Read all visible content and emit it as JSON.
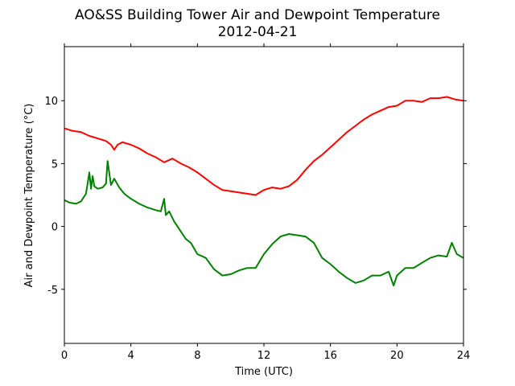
{
  "chart_data": {
    "type": "line",
    "title": "AO&SS Building Tower Air and Dewpoint Temperature",
    "subtitle": "2012-04-21",
    "xlabel": "Time (UTC)",
    "ylabel": "Air and Dewpoint Temperature (°C)",
    "xlim": [
      0,
      24
    ],
    "ylim": [
      -9.3,
      14.3
    ],
    "xticks": [
      0,
      4,
      8,
      12,
      16,
      20,
      24
    ],
    "yticks": [
      -5,
      0,
      5,
      10
    ],
    "grid": false,
    "legend": "none",
    "series": [
      {
        "color": "#ff0000",
        "x": [
          0,
          0.5,
          1,
          1.5,
          2,
          2.5,
          2.8,
          3.0,
          3.2,
          3.5,
          4.0,
          4.5,
          5.0,
          5.5,
          6.0,
          6.5,
          7.0,
          7.5,
          8.0,
          8.5,
          9.0,
          9.5,
          10.0,
          10.5,
          11.0,
          11.5,
          12.0,
          12.5,
          13.0,
          13.5,
          14.0,
          14.5,
          15.0,
          15.5,
          16.0,
          16.5,
          17.0,
          17.5,
          18.0,
          18.5,
          19.0,
          19.5,
          20.0,
          20.5,
          21.0,
          21.5,
          22.0,
          22.5,
          23.0,
          23.5,
          24.0
        ],
        "values": [
          7.8,
          7.6,
          7.5,
          7.2,
          7.0,
          6.8,
          6.5,
          6.1,
          6.5,
          6.7,
          6.5,
          6.2,
          5.8,
          5.5,
          5.1,
          5.4,
          5.0,
          4.7,
          4.3,
          3.8,
          3.3,
          2.9,
          2.8,
          2.7,
          2.6,
          2.5,
          2.9,
          3.1,
          3.0,
          3.2,
          3.7,
          4.5,
          5.2,
          5.7,
          6.3,
          6.9,
          7.5,
          8.0,
          8.5,
          8.9,
          9.2,
          9.5,
          9.6,
          10.0,
          10.0,
          9.9,
          10.2,
          10.2,
          10.3,
          10.1,
          10.0
        ]
      },
      {
        "color": "#008000",
        "x": [
          0,
          0.3,
          0.7,
          1.0,
          1.3,
          1.5,
          1.6,
          1.7,
          1.8,
          2.0,
          2.3,
          2.5,
          2.6,
          2.8,
          3.0,
          3.3,
          3.6,
          4.0,
          4.5,
          5.0,
          5.5,
          5.8,
          6.0,
          6.1,
          6.3,
          6.6,
          7.0,
          7.3,
          7.6,
          8.0,
          8.5,
          9.0,
          9.5,
          10.0,
          10.5,
          11.0,
          11.5,
          12.0,
          12.5,
          13.0,
          13.5,
          14.0,
          14.5,
          15.0,
          15.5,
          16.0,
          16.5,
          17.0,
          17.5,
          18.0,
          18.5,
          19.0,
          19.5,
          19.8,
          20.0,
          20.5,
          21.0,
          21.5,
          22.0,
          22.5,
          23.0,
          23.3,
          23.6,
          24.0
        ],
        "values": [
          2.1,
          1.9,
          1.8,
          2.0,
          2.6,
          4.3,
          3.0,
          4.0,
          3.2,
          3.0,
          3.1,
          3.4,
          5.2,
          3.3,
          3.8,
          3.1,
          2.6,
          2.2,
          1.8,
          1.5,
          1.3,
          1.2,
          2.2,
          0.9,
          1.2,
          0.4,
          -0.4,
          -1.0,
          -1.3,
          -2.2,
          -2.5,
          -3.4,
          -3.9,
          -3.8,
          -3.5,
          -3.3,
          -3.3,
          -2.2,
          -1.4,
          -0.8,
          -0.6,
          -0.7,
          -0.8,
          -1.3,
          -2.5,
          -3.0,
          -3.6,
          -4.1,
          -4.5,
          -4.3,
          -3.9,
          -3.9,
          -3.6,
          -4.7,
          -3.9,
          -3.3,
          -3.3,
          -2.9,
          -2.5,
          -2.3,
          -2.4,
          -1.3,
          -2.2,
          -2.5
        ]
      }
    ]
  }
}
